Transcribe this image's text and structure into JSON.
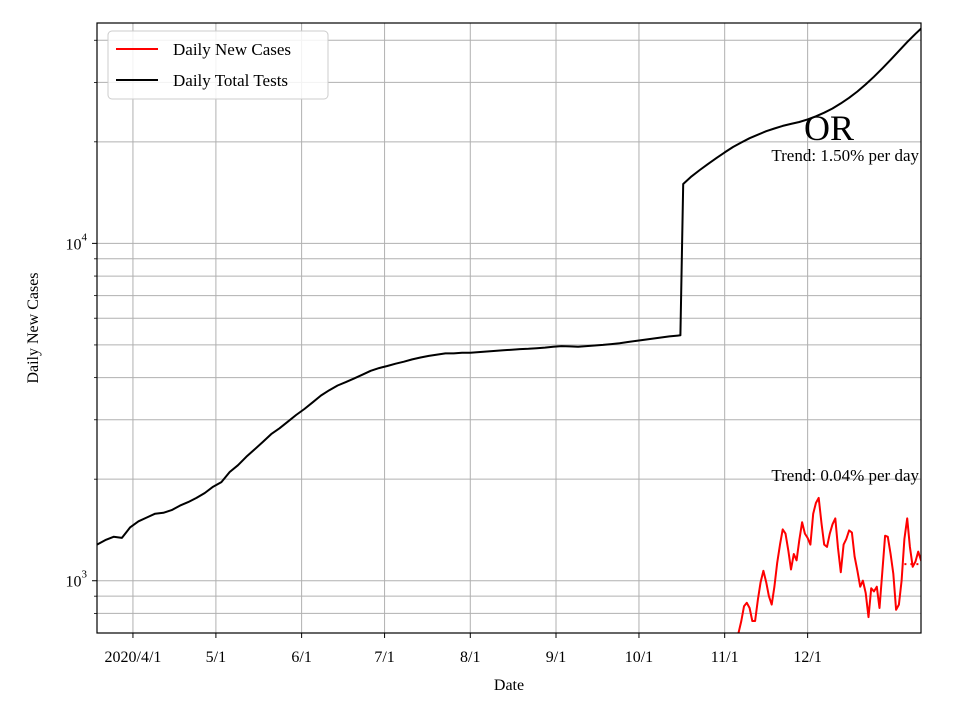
{
  "chart_data": {
    "type": "line",
    "title": "",
    "xlabel": "Date",
    "ylabel": "Daily New Cases",
    "yscale": "log",
    "ylim": [
      700,
      45000
    ],
    "xlim": [
      "2020-03-19",
      "2021-01-11"
    ],
    "grid": true,
    "legend_location": "upper-left",
    "x_ticks": [
      {
        "date": "2020-04-01",
        "label": "2020/4/1"
      },
      {
        "date": "2020-05-01",
        "label": "5/1"
      },
      {
        "date": "2020-06-01",
        "label": "6/1"
      },
      {
        "date": "2020-07-01",
        "label": "7/1"
      },
      {
        "date": "2020-08-01",
        "label": "8/1"
      },
      {
        "date": "2020-09-01",
        "label": "9/1"
      },
      {
        "date": "2020-10-01",
        "label": "10/1"
      },
      {
        "date": "2020-11-01",
        "label": "11/1"
      },
      {
        "date": "2020-12-01",
        "label": "12/1"
      }
    ],
    "y_ticks": [
      {
        "value": 1000,
        "base": "10",
        "exp": "3"
      },
      {
        "value": 10000,
        "base": "10",
        "exp": "4"
      }
    ],
    "y_minor_ticks": [
      800,
      900,
      2000,
      3000,
      4000,
      5000,
      6000,
      7000,
      8000,
      9000,
      20000,
      30000,
      40000
    ],
    "series": [
      {
        "name": "Daily New Cases",
        "color": "#ff0000",
        "points": [
          [
            "2020-11-06",
            700
          ],
          [
            "2020-11-07",
            760
          ],
          [
            "2020-11-08",
            840
          ],
          [
            "2020-11-09",
            860
          ],
          [
            "2020-11-10",
            830
          ],
          [
            "2020-11-11",
            760
          ],
          [
            "2020-11-12",
            760
          ],
          [
            "2020-11-13",
            880
          ],
          [
            "2020-11-14",
            990
          ],
          [
            "2020-11-15",
            1070
          ],
          [
            "2020-11-16",
            990
          ],
          [
            "2020-11-17",
            900
          ],
          [
            "2020-11-18",
            850
          ],
          [
            "2020-11-19",
            960
          ],
          [
            "2020-11-20",
            1130
          ],
          [
            "2020-11-21",
            1280
          ],
          [
            "2020-11-22",
            1420
          ],
          [
            "2020-11-23",
            1380
          ],
          [
            "2020-11-24",
            1230
          ],
          [
            "2020-11-25",
            1080
          ],
          [
            "2020-11-26",
            1200
          ],
          [
            "2020-11-27",
            1150
          ],
          [
            "2020-11-28",
            1320
          ],
          [
            "2020-11-29",
            1490
          ],
          [
            "2020-11-30",
            1380
          ],
          [
            "2020-12-01",
            1340
          ],
          [
            "2020-12-02",
            1280
          ],
          [
            "2020-12-03",
            1580
          ],
          [
            "2020-12-04",
            1700
          ],
          [
            "2020-12-05",
            1760
          ],
          [
            "2020-12-06",
            1480
          ],
          [
            "2020-12-07",
            1280
          ],
          [
            "2020-12-08",
            1260
          ],
          [
            "2020-12-09",
            1380
          ],
          [
            "2020-12-10",
            1470
          ],
          [
            "2020-12-11",
            1530
          ],
          [
            "2020-12-12",
            1250
          ],
          [
            "2020-12-13",
            1060
          ],
          [
            "2020-12-14",
            1280
          ],
          [
            "2020-12-15",
            1330
          ],
          [
            "2020-12-16",
            1410
          ],
          [
            "2020-12-17",
            1390
          ],
          [
            "2020-12-18",
            1180
          ],
          [
            "2020-12-19",
            1070
          ],
          [
            "2020-12-20",
            960
          ],
          [
            "2020-12-21",
            1000
          ],
          [
            "2020-12-22",
            920
          ],
          [
            "2020-12-23",
            780
          ],
          [
            "2020-12-24",
            950
          ],
          [
            "2020-12-25",
            930
          ],
          [
            "2020-12-26",
            960
          ],
          [
            "2020-12-27",
            830
          ],
          [
            "2020-12-28",
            1060
          ],
          [
            "2020-12-29",
            1360
          ],
          [
            "2020-12-30",
            1350
          ],
          [
            "2020-12-31",
            1200
          ],
          [
            "2021-01-01",
            1050
          ],
          [
            "2021-01-02",
            820
          ],
          [
            "2021-01-03",
            850
          ],
          [
            "2021-01-04",
            1000
          ],
          [
            "2021-01-05",
            1330
          ],
          [
            "2021-01-06",
            1530
          ],
          [
            "2021-01-07",
            1260
          ],
          [
            "2021-01-08",
            1100
          ],
          [
            "2021-01-09",
            1140
          ],
          [
            "2021-01-10",
            1220
          ],
          [
            "2021-01-11",
            1150
          ],
          [
            "2021-01-12",
            1110
          ],
          [
            "2021-01-13",
            980
          ],
          [
            "2021-01-14",
            960
          ]
        ]
      },
      {
        "name": "Daily Total Tests",
        "color": "#000000",
        "points": [
          [
            "2020-03-19",
            1280
          ],
          [
            "2020-03-22",
            1320
          ],
          [
            "2020-03-25",
            1350
          ],
          [
            "2020-03-28",
            1340
          ],
          [
            "2020-03-31",
            1440
          ],
          [
            "2020-04-03",
            1500
          ],
          [
            "2020-04-06",
            1540
          ],
          [
            "2020-04-09",
            1580
          ],
          [
            "2020-04-12",
            1590
          ],
          [
            "2020-04-15",
            1620
          ],
          [
            "2020-04-18",
            1670
          ],
          [
            "2020-04-21",
            1710
          ],
          [
            "2020-04-24",
            1760
          ],
          [
            "2020-04-27",
            1820
          ],
          [
            "2020-04-30",
            1900
          ],
          [
            "2020-05-03",
            1960
          ],
          [
            "2020-05-06",
            2100
          ],
          [
            "2020-05-09",
            2200
          ],
          [
            "2020-05-12",
            2330
          ],
          [
            "2020-05-15",
            2450
          ],
          [
            "2020-05-18",
            2580
          ],
          [
            "2020-05-21",
            2720
          ],
          [
            "2020-05-24",
            2830
          ],
          [
            "2020-05-27",
            2960
          ],
          [
            "2020-05-30",
            3100
          ],
          [
            "2020-06-02",
            3230
          ],
          [
            "2020-06-05",
            3380
          ],
          [
            "2020-06-08",
            3540
          ],
          [
            "2020-06-11",
            3670
          ],
          [
            "2020-06-14",
            3790
          ],
          [
            "2020-06-17",
            3880
          ],
          [
            "2020-06-20",
            3980
          ],
          [
            "2020-06-23",
            4080
          ],
          [
            "2020-06-26",
            4190
          ],
          [
            "2020-06-29",
            4270
          ],
          [
            "2020-07-02",
            4330
          ],
          [
            "2020-07-05",
            4400
          ],
          [
            "2020-07-08",
            4460
          ],
          [
            "2020-07-11",
            4530
          ],
          [
            "2020-07-14",
            4590
          ],
          [
            "2020-07-17",
            4640
          ],
          [
            "2020-07-20",
            4680
          ],
          [
            "2020-07-23",
            4720
          ],
          [
            "2020-07-26",
            4720
          ],
          [
            "2020-07-29",
            4740
          ],
          [
            "2020-08-01",
            4740
          ],
          [
            "2020-08-04",
            4760
          ],
          [
            "2020-08-07",
            4780
          ],
          [
            "2020-08-10",
            4800
          ],
          [
            "2020-08-13",
            4820
          ],
          [
            "2020-08-16",
            4840
          ],
          [
            "2020-08-19",
            4860
          ],
          [
            "2020-08-22",
            4870
          ],
          [
            "2020-08-25",
            4890
          ],
          [
            "2020-08-28",
            4910
          ],
          [
            "2020-08-31",
            4940
          ],
          [
            "2020-09-03",
            4960
          ],
          [
            "2020-09-06",
            4950
          ],
          [
            "2020-09-09",
            4940
          ],
          [
            "2020-09-12",
            4960
          ],
          [
            "2020-09-15",
            4980
          ],
          [
            "2020-09-18",
            5000
          ],
          [
            "2020-09-21",
            5030
          ],
          [
            "2020-09-24",
            5060
          ],
          [
            "2020-09-27",
            5100
          ],
          [
            "2020-09-30",
            5140
          ],
          [
            "2020-10-03",
            5180
          ],
          [
            "2020-10-06",
            5220
          ],
          [
            "2020-10-09",
            5260
          ],
          [
            "2020-10-12",
            5300
          ],
          [
            "2020-10-15",
            5330
          ],
          [
            "2020-10-16",
            5340
          ],
          [
            "2020-10-17",
            15000
          ],
          [
            "2020-10-20",
            15800
          ],
          [
            "2020-10-23",
            16500
          ],
          [
            "2020-10-26",
            17200
          ],
          [
            "2020-10-29",
            17900
          ],
          [
            "2020-11-01",
            18600
          ],
          [
            "2020-11-04",
            19300
          ],
          [
            "2020-11-07",
            19900
          ],
          [
            "2020-11-10",
            20500
          ],
          [
            "2020-11-13",
            21000
          ],
          [
            "2020-11-16",
            21500
          ],
          [
            "2020-11-19",
            21900
          ],
          [
            "2020-11-22",
            22300
          ],
          [
            "2020-11-25",
            22600
          ],
          [
            "2020-11-28",
            22900
          ],
          [
            "2020-12-01",
            23300
          ],
          [
            "2020-12-04",
            23800
          ],
          [
            "2020-12-07",
            24400
          ],
          [
            "2020-12-10",
            25100
          ],
          [
            "2020-12-13",
            26000
          ],
          [
            "2020-12-16",
            27000
          ],
          [
            "2020-12-19",
            28200
          ],
          [
            "2020-12-22",
            29600
          ],
          [
            "2020-12-25",
            31200
          ],
          [
            "2020-12-28",
            33000
          ],
          [
            "2020-12-31",
            35000
          ],
          [
            "2021-01-03",
            37200
          ],
          [
            "2021-01-06",
            39500
          ],
          [
            "2021-01-09",
            41800
          ],
          [
            "2021-01-11",
            43300
          ],
          [
            "2021-01-14",
            45000
          ]
        ]
      }
    ],
    "trend_segment": {
      "color": "#ff0000",
      "style": "dotted",
      "points": [
        [
          "2021-01-05",
          1120
        ],
        [
          "2021-01-14",
          1120
        ]
      ]
    },
    "annotations": {
      "state": "OR",
      "tests_trend": "Trend: 1.50% per day",
      "cases_trend": "Trend: 0.04% per day"
    }
  }
}
